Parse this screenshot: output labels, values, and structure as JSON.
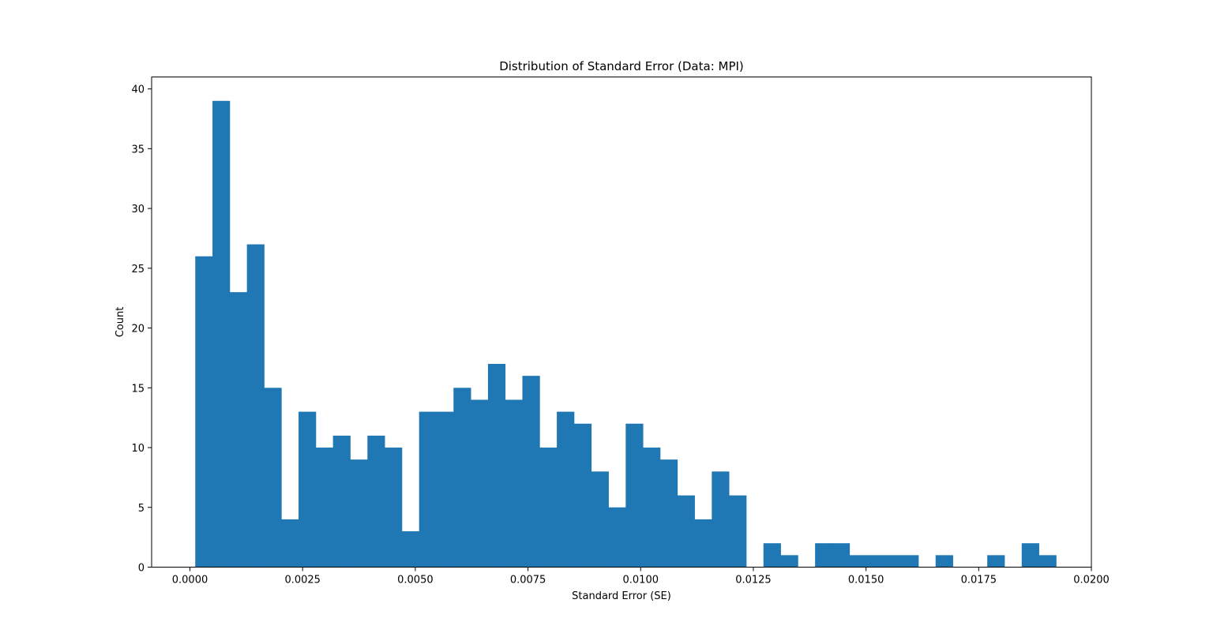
{
  "chart_data": {
    "type": "bar",
    "title": "Distribution of Standard Error (Data: MPI)",
    "xlabel": "Standard Error (SE)",
    "ylabel": "Count",
    "xlim": [
      -0.00085,
      0.02
    ],
    "ylim": [
      0,
      41
    ],
    "grid": false,
    "bar_color": "#1f77b4",
    "bins": {
      "start": 0.000118,
      "width": 0.000382,
      "counts": [
        26,
        39,
        23,
        27,
        15,
        4,
        13,
        10,
        11,
        9,
        11,
        10,
        3,
        13,
        13,
        15,
        14,
        17,
        14,
        16,
        10,
        13,
        12,
        8,
        5,
        12,
        10,
        9,
        6,
        4,
        8,
        6,
        0,
        2,
        1,
        0,
        2,
        2,
        1,
        1,
        1,
        1,
        0,
        1,
        0,
        0,
        1,
        0,
        2,
        1
      ]
    },
    "x_ticks": [
      {
        "value": 0.0,
        "label": "0.0000"
      },
      {
        "value": 0.0025,
        "label": "0.0025"
      },
      {
        "value": 0.005,
        "label": "0.0050"
      },
      {
        "value": 0.0075,
        "label": "0.0075"
      },
      {
        "value": 0.01,
        "label": "0.0100"
      },
      {
        "value": 0.0125,
        "label": "0.0125"
      },
      {
        "value": 0.015,
        "label": "0.0150"
      },
      {
        "value": 0.0175,
        "label": "0.0175"
      },
      {
        "value": 0.02,
        "label": "0.0200"
      }
    ],
    "y_ticks": [
      {
        "value": 0,
        "label": "0"
      },
      {
        "value": 5,
        "label": "5"
      },
      {
        "value": 10,
        "label": "10"
      },
      {
        "value": 15,
        "label": "15"
      },
      {
        "value": 20,
        "label": "20"
      },
      {
        "value": 25,
        "label": "25"
      },
      {
        "value": 30,
        "label": "30"
      },
      {
        "value": 35,
        "label": "35"
      },
      {
        "value": 40,
        "label": "40"
      }
    ]
  }
}
